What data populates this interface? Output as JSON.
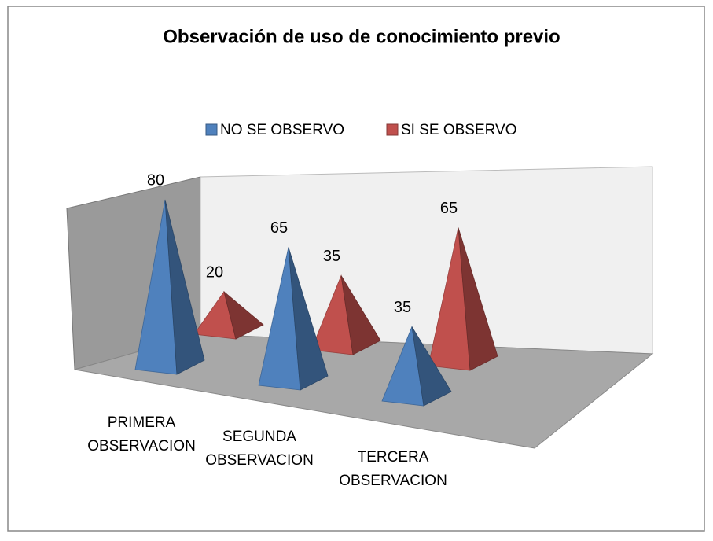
{
  "chart_data": {
    "type": "pyramid3d",
    "title": "Observación de uso de conocimiento previo",
    "categories": [
      "PRIMERA OBSERVACION",
      "SEGUNDA OBSERVACION",
      "TERCERA OBSERVACION"
    ],
    "series": [
      {
        "name": "NO SE OBSERVO",
        "color": "#4f81bd",
        "values": [
          80,
          65,
          35
        ]
      },
      {
        "name": "SI SE OBSERVO",
        "color": "#c0504d",
        "values": [
          20,
          35,
          65
        ]
      }
    ],
    "legend": "top"
  }
}
